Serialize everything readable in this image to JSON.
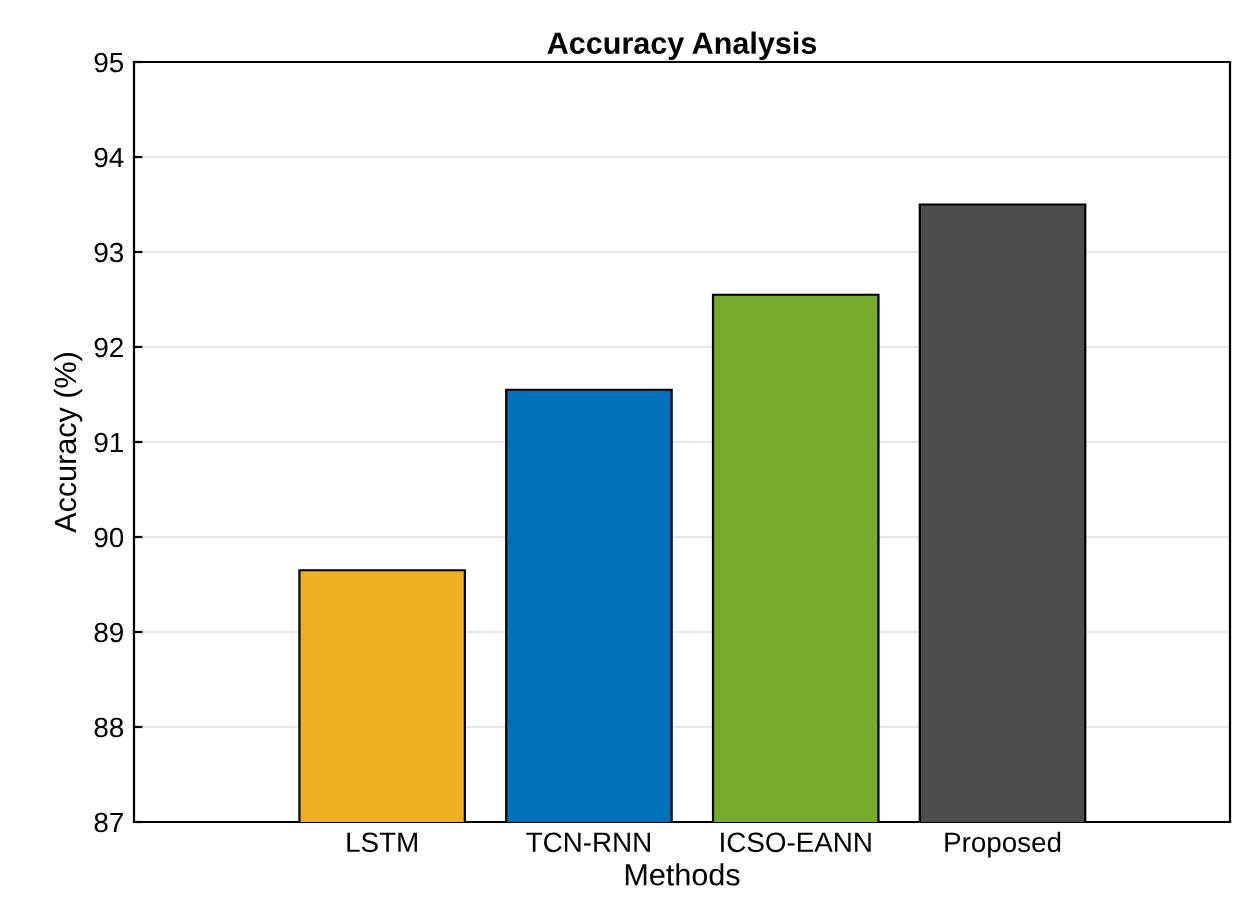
{
  "chart_data": {
    "type": "bar",
    "title": "Accuracy Analysis",
    "xlabel": "Methods",
    "ylabel": "Accuracy (%)",
    "categories": [
      "LSTM",
      "TCN-RNN",
      "ICSO-EANN",
      "Proposed"
    ],
    "values": [
      89.65,
      91.55,
      92.55,
      93.5
    ],
    "colors": [
      "#edb120",
      "#0072bd",
      "#77ac30",
      "#4d4d4d"
    ],
    "ylim": [
      87,
      95
    ],
    "yticks": [
      87,
      88,
      89,
      90,
      91,
      92,
      93,
      94,
      95
    ],
    "grid": "y"
  }
}
